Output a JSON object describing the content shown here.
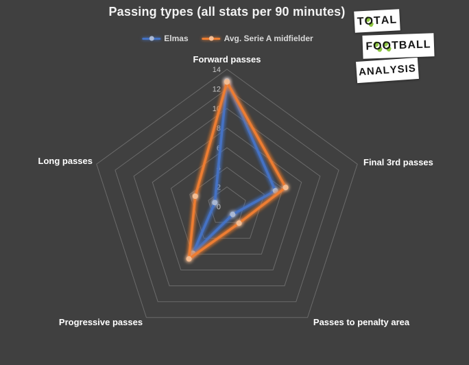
{
  "page": {
    "background_color": "#404040"
  },
  "title": "Passing types (all stats per 90 minutes)",
  "logo": {
    "lines": [
      "TOTAL",
      "FOOTBALL",
      "ANALYSIS"
    ],
    "box_color": "#ffffff",
    "text_color": "#161616",
    "accent_green": "#8dc63f"
  },
  "chart_data": {
    "type": "radar",
    "title": "Passing types (all stats per 90 minutes)",
    "categories": [
      "Forward passes",
      "Final 3rd passes",
      "Passes to penalty area",
      "Progressive passes",
      "Long passes"
    ],
    "series": [
      {
        "name": "Elmas",
        "color": "#4472c4",
        "marker_color": "#a9b8d4",
        "values": [
          12.8,
          5.2,
          1.0,
          5.9,
          1.3
        ]
      },
      {
        "name": "Avg. Serie A midfielder",
        "color": "#ed7d31",
        "marker_color": "#f4bd92",
        "values": [
          12.7,
          6.3,
          2.1,
          6.6,
          3.4
        ]
      }
    ],
    "axis_min": 0,
    "axis_max": 14,
    "tick_interval": 2,
    "ticks": [
      0,
      2,
      4,
      6,
      8,
      10,
      12,
      14
    ],
    "grid": "concentric pentagons, no radial spokes",
    "grid_color": "#6b6b6b",
    "tick_label_color": "#c7c7c7",
    "category_label_color": "#ffffff",
    "legend_position": "top-center"
  }
}
